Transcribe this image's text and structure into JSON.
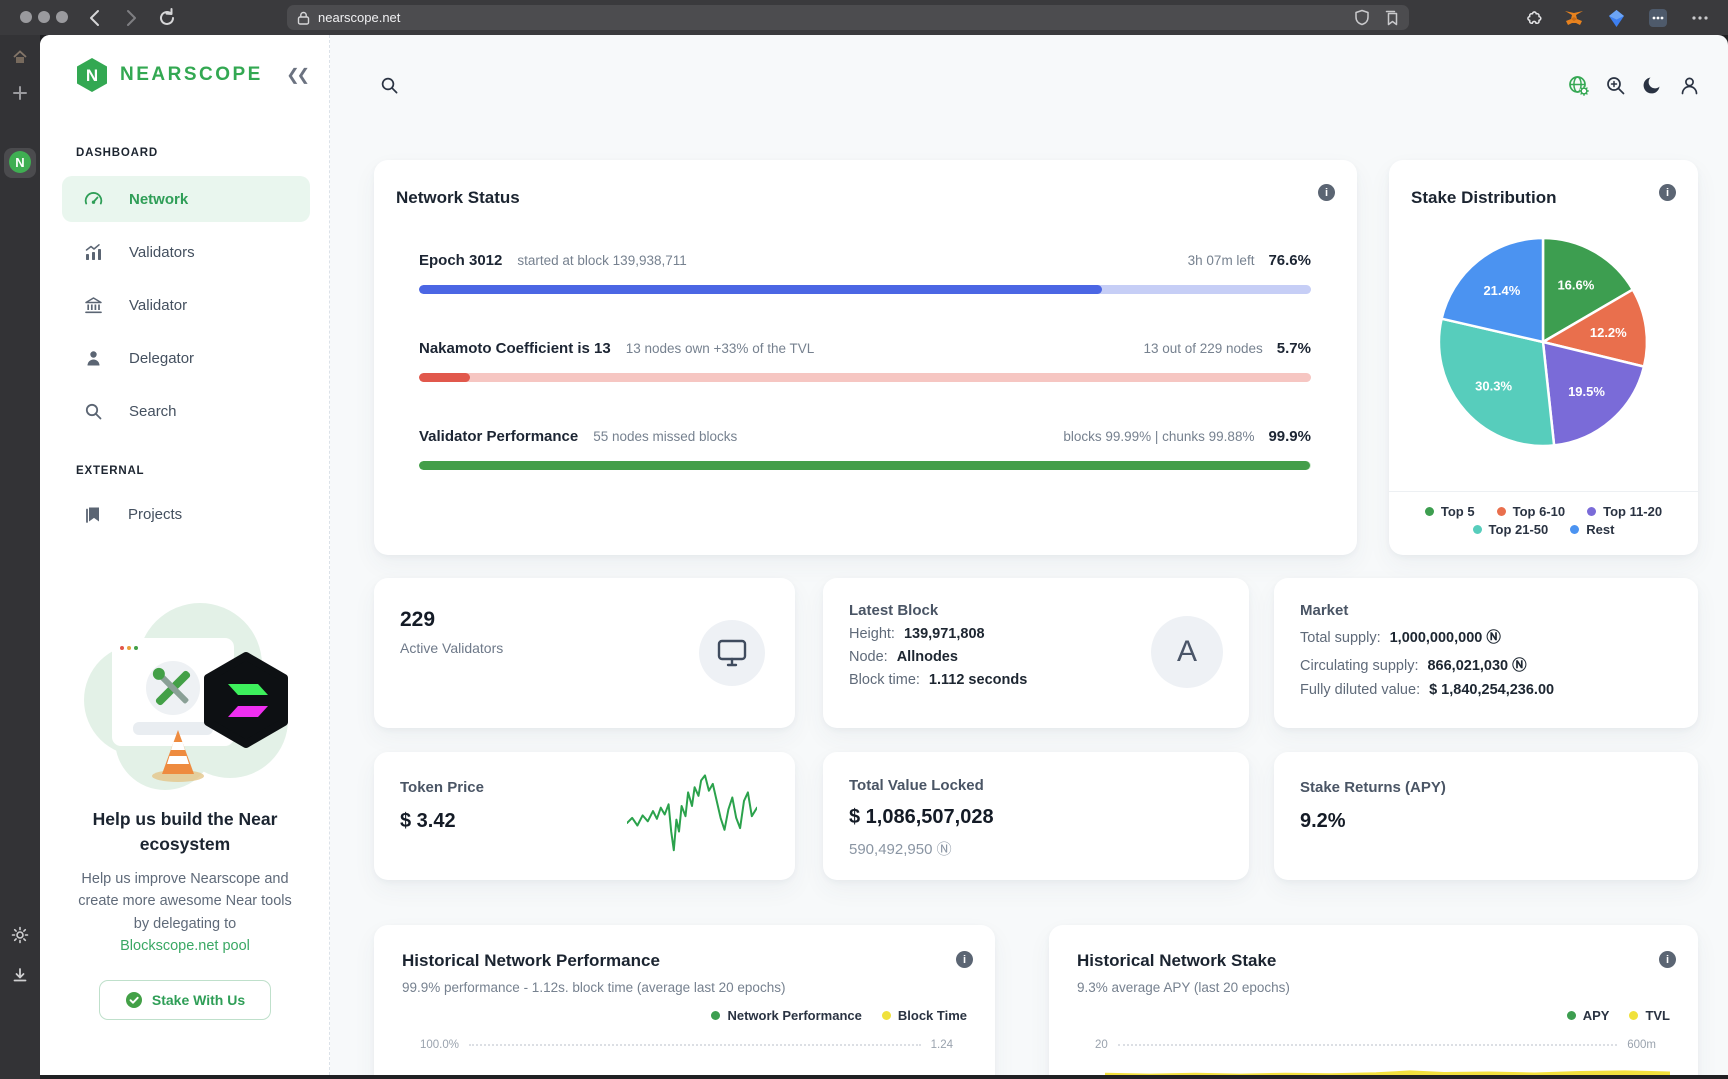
{
  "browser": {
    "url": "nearscope.net",
    "icons": [
      "back",
      "forward",
      "reload",
      "lock",
      "shield",
      "bookmark",
      "extensions",
      "metamask",
      "wallet",
      "password-manager",
      "menu"
    ],
    "strip": [
      "home",
      "new-tab",
      "nearscope-tab",
      "settings",
      "downloads"
    ]
  },
  "sidebar": {
    "brand": "NEARSCOPE",
    "section_dashboard": "DASHBOARD",
    "section_external": "EXTERNAL",
    "nav": [
      {
        "label": "Network"
      },
      {
        "label": "Validators"
      },
      {
        "label": "Validator"
      },
      {
        "label": "Delegator"
      },
      {
        "label": "Search"
      },
      {
        "label": "Projects"
      }
    ],
    "promo": {
      "heading": "Help us build the Near ecosystem",
      "body": "Help us improve Nearscope and create more awesome Near tools by delegating to",
      "link": "Blockscope.net pool",
      "button": "Stake With Us"
    }
  },
  "network_status": {
    "title": "Network Status",
    "rows": [
      {
        "name": "Epoch 3012",
        "detail": "started at block 139,938,711",
        "meta": "3h 07m left",
        "value": "76.6%",
        "pct": 76.6,
        "fill": "#4b66e4",
        "track": "#c6cef6"
      },
      {
        "name": "Nakamoto Coefficient is 13",
        "detail": "13 nodes own +33% of the TVL",
        "meta": "13 out of 229 nodes",
        "value": "5.7%",
        "pct": 5.7,
        "fill": "#e1584c",
        "track": "#f6c6c2"
      },
      {
        "name": "Validator Performance",
        "detail": "55 nodes missed blocks",
        "meta": "blocks 99.99% | chunks 99.88%",
        "value": "99.9%",
        "pct": 99.9,
        "fill": "#439e49",
        "track": "#d3ecd3"
      }
    ]
  },
  "stake_distribution": {
    "title": "Stake Distribution",
    "values": [
      16.6,
      12.2,
      19.5,
      30.3,
      21.4
    ],
    "legend": [
      {
        "label": "Top 5",
        "color": "#3d9e50"
      },
      {
        "label": "Top 6-10",
        "color": "#e96f4d"
      },
      {
        "label": "Top 11-20",
        "color": "#7a6bd8"
      },
      {
        "label": "Top 21-50",
        "color": "#57cdbc"
      },
      {
        "label": "Rest",
        "color": "#4b93f1"
      }
    ]
  },
  "cards": {
    "active_validators": {
      "value": "229",
      "label": "Active Validators"
    },
    "latest_block": {
      "title": "Latest Block",
      "rows": [
        {
          "label": "Height:",
          "value": "139,971,808"
        },
        {
          "label": "Node:",
          "value": "Allnodes"
        },
        {
          "label": "Block time:",
          "value": "1.112 seconds"
        }
      ],
      "avatar": "A"
    },
    "market": {
      "title": "Market",
      "rows": [
        {
          "label": "Total supply:",
          "value": "1,000,000,000 Ⓝ"
        },
        {
          "label": "Circulating supply:",
          "value": "866,021,030 Ⓝ"
        },
        {
          "label": "Fully diluted value:",
          "value": "$ 1,840,254,236.00"
        }
      ]
    },
    "token_price": {
      "title": "Token Price",
      "value": "$ 3.42",
      "spark": [
        [
          0,
          60
        ],
        [
          4,
          54
        ],
        [
          8,
          63
        ],
        [
          12,
          51
        ],
        [
          16,
          58
        ],
        [
          20,
          46
        ],
        [
          23,
          55
        ],
        [
          26,
          42
        ],
        [
          29,
          50
        ],
        [
          32,
          38
        ],
        [
          34,
          70
        ],
        [
          36,
          92
        ],
        [
          38,
          56
        ],
        [
          40,
          70
        ],
        [
          42,
          40
        ],
        [
          45,
          52
        ],
        [
          47,
          24
        ],
        [
          50,
          40
        ],
        [
          52,
          18
        ],
        [
          55,
          28
        ],
        [
          57,
          10
        ],
        [
          60,
          4
        ],
        [
          63,
          22
        ],
        [
          66,
          14
        ],
        [
          69,
          34
        ],
        [
          72,
          54
        ],
        [
          75,
          68
        ],
        [
          78,
          44
        ],
        [
          81,
          30
        ],
        [
          84,
          54
        ],
        [
          87,
          66
        ],
        [
          90,
          34
        ],
        [
          93,
          24
        ],
        [
          96,
          52
        ],
        [
          100,
          42
        ]
      ]
    },
    "tvl": {
      "title": "Total Value Locked",
      "value": "$ 1,086,507,028",
      "sub": "590,492,950 Ⓝ"
    },
    "apy": {
      "title": "Stake Returns (APY)",
      "value": "9.2%"
    }
  },
  "hist_perf": {
    "title": "Historical Network Performance",
    "subtitle": "99.9% performance - 1.12s. block time (average last 20 epochs)",
    "legend": [
      {
        "label": "Network Performance",
        "color": "#3d9e50"
      },
      {
        "label": "Block Time",
        "color": "#f0e13c"
      }
    ],
    "axis_left": "100.0%",
    "axis_right": "1.24"
  },
  "hist_stake": {
    "title": "Historical Network Stake",
    "subtitle": "9.3% average APY (last 20 epochs)",
    "legend": [
      {
        "label": "APY",
        "color": "#3d9e50"
      },
      {
        "label": "TVL",
        "color": "#f0e13c"
      }
    ],
    "axis_left": "20",
    "axis_right": "600m",
    "tvl_line": [
      [
        0,
        55
      ],
      [
        8,
        62
      ],
      [
        16,
        56
      ],
      [
        24,
        62
      ],
      [
        32,
        55
      ],
      [
        40,
        60
      ],
      [
        48,
        52
      ],
      [
        54,
        38
      ],
      [
        60,
        50
      ],
      [
        68,
        46
      ],
      [
        76,
        54
      ],
      [
        84,
        42
      ],
      [
        92,
        38
      ],
      [
        100,
        46
      ]
    ]
  },
  "chart_data": [
    {
      "type": "pie",
      "title": "Stake Distribution",
      "labels": [
        "Top 5",
        "Top 6-10",
        "Top 11-20",
        "Top 21-50",
        "Rest"
      ],
      "values": [
        16.6,
        12.2,
        19.5,
        30.3,
        21.4
      ],
      "legend_position": "bottom"
    },
    {
      "type": "line",
      "title": "Historical Network Performance",
      "subtitle": "99.9% performance - 1.12s. block time (average last 20 epochs)",
      "series": [
        {
          "name": "Network Performance"
        },
        {
          "name": "Block Time"
        }
      ],
      "tick_labels_visible": {
        "y_left": "100.0%",
        "y_right": "1.24"
      }
    },
    {
      "type": "line",
      "title": "Historical Network Stake",
      "subtitle": "9.3% average APY (last 20 epochs)",
      "series": [
        {
          "name": "APY"
        },
        {
          "name": "TVL"
        }
      ],
      "tick_labels_visible": {
        "y_left": "20",
        "y_right": "600m"
      }
    }
  ]
}
